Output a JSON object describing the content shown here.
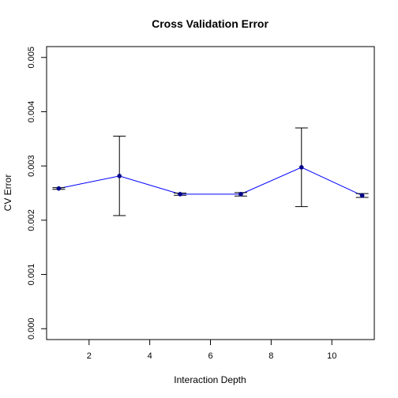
{
  "chart_data": {
    "type": "line",
    "title": "Cross Validation Error",
    "xlabel": "Interaction Depth",
    "ylabel": "CV Error",
    "xlim": [
      0.6,
      11.4
    ],
    "ylim": [
      -0.0002,
      0.0052
    ],
    "x_ticks": [
      2,
      4,
      6,
      8,
      10
    ],
    "x_tick_labels": [
      "2",
      "4",
      "6",
      "8",
      "10"
    ],
    "y_ticks": [
      0.0,
      0.001,
      0.002,
      0.003,
      0.004,
      0.005
    ],
    "y_tick_labels": [
      "0.000",
      "0.001",
      "0.002",
      "0.003",
      "0.004",
      "0.005"
    ],
    "grid": false,
    "line_color": "#0000ff",
    "point_color": "#00008b",
    "errorbar_color": "#000000",
    "series": [
      {
        "x": [
          1,
          3,
          5,
          7,
          9,
          11
        ],
        "y": [
          0.002585,
          0.002815,
          0.00248,
          0.00248,
          0.002975,
          0.002455
        ],
        "lower": [
          0.00257,
          0.002085,
          0.00246,
          0.002445,
          0.00225,
          0.00242
        ],
        "upper": [
          0.0026,
          0.00355,
          0.0025,
          0.00251,
          0.0037,
          0.00249
        ]
      }
    ]
  }
}
